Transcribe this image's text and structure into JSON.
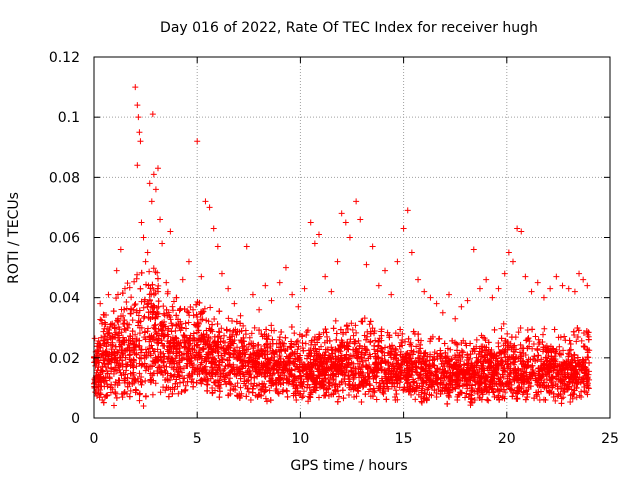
{
  "chart_data": {
    "type": "scatter",
    "title": "Day 016 of 2022, Rate Of TEC Index for receiver hugh",
    "xlabel": "GPS time / hours",
    "ylabel": "ROTI / TECUs",
    "xlim": [
      0,
      25
    ],
    "ylim": [
      0,
      0.12
    ],
    "grid": true,
    "marker": "+",
    "colors": {
      "series": "#ff0000",
      "grid": "#a0a0a0",
      "axis": "#000000"
    },
    "xticks": [
      0,
      5,
      10,
      15,
      20,
      25
    ],
    "xtick_labels": [
      "0",
      "5",
      "10",
      "15",
      "20",
      "25"
    ],
    "yticks": [
      0,
      0.02,
      0.04,
      0.06,
      0.08,
      0.1,
      0.12
    ],
    "ytick_labels": [
      "0",
      "0.02",
      "0.04",
      "0.06",
      "0.08",
      "0.1",
      "0.12"
    ],
    "series": [
      {
        "name": "ROTI",
        "points": [
          [
            0.1,
            0.014
          ],
          [
            0.3,
            0.038
          ],
          [
            0.5,
            0.012
          ],
          [
            0.7,
            0.041
          ],
          [
            0.9,
            0.025
          ],
          [
            1.1,
            0.049
          ],
          [
            1.3,
            0.056
          ],
          [
            1.5,
            0.043
          ],
          [
            1.7,
            0.031
          ],
          [
            1.9,
            0.036
          ],
          [
            2.0,
            0.11
          ],
          [
            2.1,
            0.104
          ],
          [
            2.15,
            0.1
          ],
          [
            2.2,
            0.095
          ],
          [
            2.25,
            0.092
          ],
          [
            2.1,
            0.084
          ],
          [
            2.3,
            0.065
          ],
          [
            2.4,
            0.06
          ],
          [
            2.5,
            0.052
          ],
          [
            2.6,
            0.055
          ],
          [
            2.7,
            0.078
          ],
          [
            2.8,
            0.072
          ],
          [
            2.85,
            0.101
          ],
          [
            2.9,
            0.081
          ],
          [
            3.0,
            0.076
          ],
          [
            3.1,
            0.083
          ],
          [
            3.2,
            0.066
          ],
          [
            3.3,
            0.058
          ],
          [
            3.5,
            0.045
          ],
          [
            3.7,
            0.062
          ],
          [
            4.0,
            0.04
          ],
          [
            4.3,
            0.046
          ],
          [
            4.6,
            0.052
          ],
          [
            4.8,
            0.036
          ],
          [
            5.0,
            0.092
          ],
          [
            5.2,
            0.047
          ],
          [
            5.4,
            0.072
          ],
          [
            5.6,
            0.07
          ],
          [
            5.8,
            0.063
          ],
          [
            6.0,
            0.057
          ],
          [
            6.2,
            0.048
          ],
          [
            6.5,
            0.043
          ],
          [
            6.8,
            0.038
          ],
          [
            7.1,
            0.034
          ],
          [
            7.4,
            0.057
          ],
          [
            7.7,
            0.041
          ],
          [
            8.0,
            0.036
          ],
          [
            8.3,
            0.044
          ],
          [
            8.6,
            0.039
          ],
          [
            9.0,
            0.045
          ],
          [
            9.3,
            0.05
          ],
          [
            9.6,
            0.041
          ],
          [
            9.9,
            0.037
          ],
          [
            10.2,
            0.043
          ],
          [
            10.5,
            0.065
          ],
          [
            10.7,
            0.058
          ],
          [
            10.9,
            0.061
          ],
          [
            11.2,
            0.047
          ],
          [
            11.5,
            0.042
          ],
          [
            11.8,
            0.052
          ],
          [
            12.0,
            0.068
          ],
          [
            12.2,
            0.065
          ],
          [
            12.4,
            0.06
          ],
          [
            12.7,
            0.072
          ],
          [
            12.9,
            0.066
          ],
          [
            13.2,
            0.051
          ],
          [
            13.5,
            0.057
          ],
          [
            13.8,
            0.044
          ],
          [
            14.1,
            0.049
          ],
          [
            14.4,
            0.041
          ],
          [
            14.7,
            0.052
          ],
          [
            15.0,
            0.063
          ],
          [
            15.2,
            0.069
          ],
          [
            15.4,
            0.055
          ],
          [
            15.7,
            0.046
          ],
          [
            16.0,
            0.042
          ],
          [
            16.3,
            0.04
          ],
          [
            16.6,
            0.038
          ],
          [
            16.9,
            0.035
          ],
          [
            17.2,
            0.041
          ],
          [
            17.5,
            0.033
          ],
          [
            17.8,
            0.037
          ],
          [
            18.1,
            0.039
          ],
          [
            18.4,
            0.056
          ],
          [
            18.7,
            0.043
          ],
          [
            19.0,
            0.046
          ],
          [
            19.3,
            0.04
          ],
          [
            19.6,
            0.043
          ],
          [
            19.9,
            0.048
          ],
          [
            20.1,
            0.055
          ],
          [
            20.3,
            0.052
          ],
          [
            20.5,
            0.063
          ],
          [
            20.7,
            0.062
          ],
          [
            20.9,
            0.047
          ],
          [
            21.2,
            0.042
          ],
          [
            21.5,
            0.045
          ],
          [
            21.8,
            0.04
          ],
          [
            22.1,
            0.043
          ],
          [
            22.4,
            0.047
          ],
          [
            22.7,
            0.044
          ],
          [
            23.0,
            0.043
          ],
          [
            23.3,
            0.042
          ],
          [
            23.5,
            0.048
          ],
          [
            23.7,
            0.046
          ],
          [
            23.9,
            0.044
          ],
          [
            0.4,
            0.006
          ],
          [
            1.6,
            0.008
          ],
          [
            2.4,
            0.004
          ],
          [
            3.6,
            0.01
          ],
          [
            4.4,
            0.009
          ],
          [
            5.5,
            0.011
          ],
          [
            6.6,
            0.008
          ],
          [
            7.6,
            0.006
          ],
          [
            8.8,
            0.009
          ],
          [
            9.8,
            0.006
          ],
          [
            10.8,
            0.01
          ],
          [
            11.6,
            0.008
          ],
          [
            12.6,
            0.007
          ],
          [
            13.6,
            0.009
          ],
          [
            14.6,
            0.006
          ],
          [
            15.6,
            0.009
          ],
          [
            16.6,
            0.007
          ],
          [
            17.6,
            0.006
          ],
          [
            18.6,
            0.008
          ],
          [
            19.6,
            0.007
          ],
          [
            20.6,
            0.009
          ],
          [
            21.6,
            0.006
          ],
          [
            22.6,
            0.008
          ],
          [
            23.6,
            0.007
          ],
          [
            23.95,
            0.01
          ]
        ]
      }
    ],
    "dense_band": {
      "description_of_bulk": "approximate envelope of the dense scatter cloud by hour",
      "x": [
        0,
        1,
        2,
        3,
        4,
        5,
        6,
        7,
        8,
        9,
        10,
        11,
        12,
        13,
        14,
        15,
        16,
        17,
        18,
        19,
        20,
        21,
        22,
        23,
        24
      ],
      "low": [
        0.006,
        0.006,
        0.005,
        0.008,
        0.008,
        0.009,
        0.008,
        0.007,
        0.007,
        0.007,
        0.006,
        0.007,
        0.007,
        0.007,
        0.006,
        0.007,
        0.006,
        0.006,
        0.006,
        0.006,
        0.006,
        0.006,
        0.006,
        0.006,
        0.007
      ],
      "mid": [
        0.016,
        0.02,
        0.024,
        0.026,
        0.022,
        0.022,
        0.02,
        0.018,
        0.017,
        0.017,
        0.016,
        0.016,
        0.017,
        0.017,
        0.016,
        0.016,
        0.015,
        0.014,
        0.014,
        0.015,
        0.016,
        0.016,
        0.016,
        0.015,
        0.015
      ],
      "high": [
        0.03,
        0.04,
        0.048,
        0.05,
        0.04,
        0.04,
        0.036,
        0.032,
        0.03,
        0.032,
        0.03,
        0.03,
        0.034,
        0.034,
        0.03,
        0.03,
        0.028,
        0.026,
        0.026,
        0.028,
        0.032,
        0.03,
        0.03,
        0.03,
        0.03
      ]
    }
  }
}
